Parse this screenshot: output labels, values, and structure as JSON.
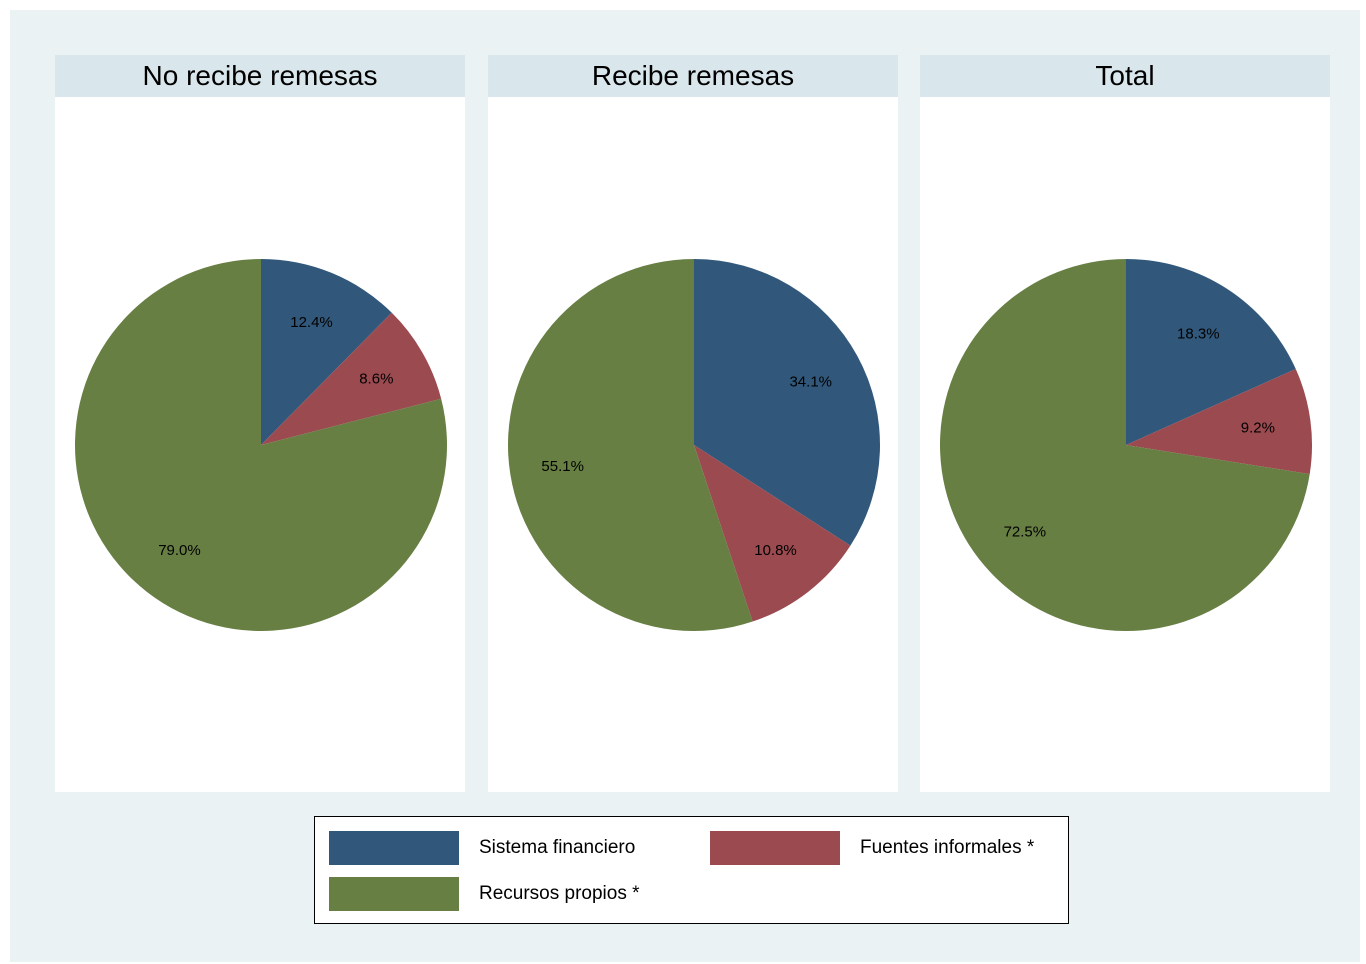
{
  "colors": {
    "sistema_financiero": "#31587b",
    "fuentes_informales": "#9b4a50",
    "recursos_propios": "#677f43"
  },
  "legend": {
    "items": [
      {
        "label": "Sistema financiero",
        "color": "#31587b"
      },
      {
        "label": "Fuentes informales *",
        "color": "#9b4a50"
      },
      {
        "label": "Recursos propios *",
        "color": "#677f43"
      }
    ]
  },
  "chart_data": [
    {
      "type": "pie",
      "title": "No recibe remesas",
      "categories": [
        "Sistema financiero",
        "Fuentes informales *",
        "Recursos propios *"
      ],
      "values": [
        12.4,
        8.6,
        79.0
      ],
      "labels": [
        "12.4%",
        "8.6%",
        "79.0%"
      ]
    },
    {
      "type": "pie",
      "title": "Recibe remesas",
      "categories": [
        "Sistema financiero",
        "Fuentes informales *",
        "Recursos propios *"
      ],
      "values": [
        34.1,
        10.8,
        55.1
      ],
      "labels": [
        "34.1%",
        "10.8%",
        "55.1%"
      ]
    },
    {
      "type": "pie",
      "title": "Total",
      "categories": [
        "Sistema financiero",
        "Fuentes informales *",
        "Recursos propios *"
      ],
      "values": [
        18.3,
        9.2,
        72.5
      ],
      "labels": [
        "18.3%",
        "9.2%",
        "72.5%"
      ]
    }
  ]
}
